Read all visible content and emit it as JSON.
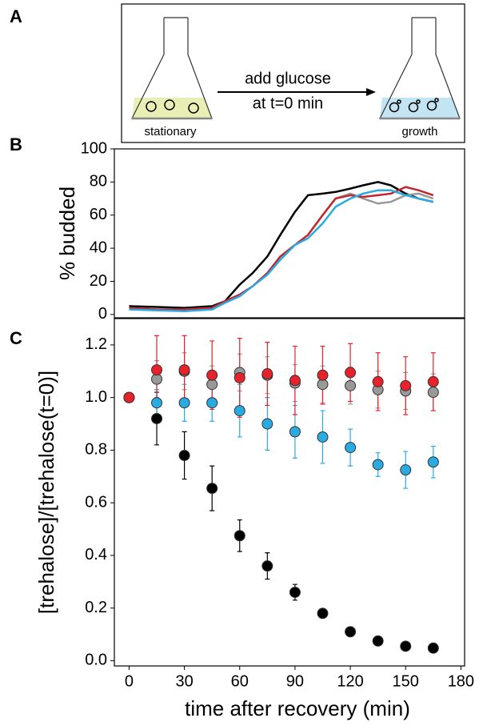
{
  "panel_labels": [
    "A",
    "B",
    "C"
  ],
  "diagram": {
    "arrow_label_1": "add glucose",
    "arrow_label_2": "at t=0 min",
    "left_label": "stationary",
    "right_label": "growth"
  },
  "chart_data": [
    {
      "type": "line",
      "ylabel": "% budded",
      "x": [
        0,
        15,
        30,
        45,
        52,
        60,
        67,
        75,
        82,
        90,
        97,
        105,
        112,
        120,
        127,
        135,
        142,
        150,
        157,
        165
      ],
      "xlim": [
        -8,
        182
      ],
      "ylim": [
        -2,
        100
      ],
      "yticks": [
        0,
        20,
        40,
        60,
        80,
        100
      ],
      "series": [
        {
          "color": "#000000",
          "values": [
            5,
            4.5,
            4,
            5,
            8,
            18,
            25,
            35,
            48,
            62,
            72,
            73,
            74,
            76,
            78,
            80,
            78,
            73,
            70,
            68
          ]
        },
        {
          "color": "#999999",
          "values": [
            4,
            3,
            3,
            4,
            8,
            12,
            17,
            25,
            35,
            42,
            48,
            60,
            70,
            73,
            70,
            67,
            68,
            72,
            73,
            70
          ]
        },
        {
          "color": "#c1272d",
          "values": [
            4,
            3,
            3,
            4,
            8,
            12,
            17,
            25,
            35,
            42,
            48,
            60,
            70,
            72,
            71,
            72,
            73,
            77,
            75,
            72
          ]
        },
        {
          "color": "#29abe2",
          "values": [
            3,
            2.5,
            2,
            3,
            7,
            11,
            17,
            24,
            33,
            42,
            46,
            55,
            65,
            70,
            73,
            75,
            75,
            72,
            70,
            68
          ]
        }
      ]
    },
    {
      "type": "scatter",
      "xlabel": "time after recovery (min)",
      "ylabel": "[trehalose]/[trehalose(t=0)]",
      "x": [
        0,
        15,
        30,
        45,
        60,
        75,
        90,
        105,
        120,
        135,
        150,
        165
      ],
      "xlim": [
        -8,
        182
      ],
      "xticks": [
        0,
        30,
        60,
        90,
        120,
        150,
        180
      ],
      "ylim": [
        -0.02,
        1.3
      ],
      "yticks": [
        {
          "value": 0,
          "label": "0.0"
        },
        0.2,
        0.4,
        0.6,
        0.8,
        {
          "value": 1,
          "label": "1.0"
        },
        1.2
      ],
      "series": [
        {
          "color": "#000000",
          "values": [
            1,
            0.92,
            0.78,
            0.655,
            0.475,
            0.36,
            0.26,
            0.18,
            0.11,
            0.075,
            0.055,
            0.048
          ],
          "errors": [
            0,
            0.1,
            0.09,
            0.085,
            0.06,
            0.05,
            0.03,
            0.01,
            0.01,
            0.01,
            0.01,
            0.01
          ]
        },
        {
          "color": "#999999",
          "values": [
            1,
            1.07,
            1.1,
            1.05,
            1.095,
            1.085,
            1.055,
            1.05,
            1.045,
            1.03,
            1.025,
            1.02
          ],
          "errors": [
            0,
            0.07,
            0.07,
            0.07,
            0.07,
            0.07,
            0.07,
            0.07,
            0.07,
            0.07,
            0.07,
            0.07
          ]
        },
        {
          "color": "#29abe2",
          "values": [
            1,
            0.98,
            0.98,
            0.98,
            0.95,
            0.9,
            0.87,
            0.85,
            0.81,
            0.745,
            0.725,
            0.755
          ],
          "errors": [
            0,
            0.05,
            0.07,
            0.07,
            0.1,
            0.1,
            0.1,
            0.1,
            0.07,
            0.045,
            0.07,
            0.06
          ]
        },
        {
          "color": "#e8222a",
          "values": [
            1,
            1.105,
            1.105,
            1.085,
            1.075,
            1.09,
            1.065,
            1.085,
            1.095,
            1.06,
            1.045,
            1.06
          ],
          "errors": [
            0,
            0.13,
            0.13,
            0.13,
            0.15,
            0.12,
            0.13,
            0.11,
            0.11,
            0.11,
            0.11,
            0.11
          ]
        }
      ]
    }
  ]
}
